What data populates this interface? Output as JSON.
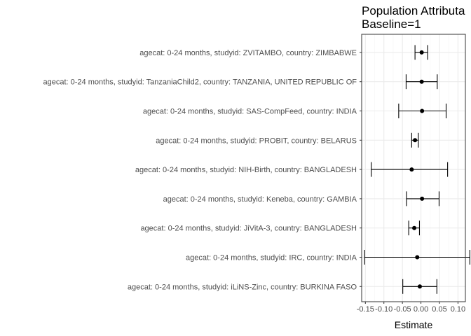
{
  "chart_data": {
    "type": "forest",
    "title_lines": [
      "Population Attributa",
      "Baseline=1"
    ],
    "xlabel": "Estimate",
    "ylabel": "",
    "xlim": [
      -0.16,
      0.12
    ],
    "xticks": [
      -0.15,
      -0.1,
      -0.05,
      0.0,
      0.05,
      0.1
    ],
    "xtick_labels": [
      "-0.15",
      "-0.10",
      "-0.05",
      "0.00",
      "0.05",
      "0.10"
    ],
    "grid": true,
    "legend": "none",
    "colors": {
      "panel_bg": "#ffffff",
      "grid_major": "#ebebeb",
      "grid_minor": "#f5f5f5",
      "border": "#333333",
      "point": "#000000",
      "text": "#4d4d4d"
    },
    "categories": [
      "agecat: 0-24 months, studyid: ZVITAMBO, country: ZIMBABWE",
      "agecat: 0-24 months, studyid: TanzaniaChild2, country: TANZANIA, UNITED REPUBLIC OF",
      "agecat: 0-24 months, studyid: SAS-CompFeed, country: INDIA",
      "agecat: 0-24 months, studyid: PROBIT, country: BELARUS",
      "agecat: 0-24 months, studyid: NIH-Birth, country: BANGLADESH",
      "agecat: 0-24 months, studyid: Keneba, country: GAMBIA",
      "agecat: 0-24 months, studyid: JiVitA-3, country: BANGLADESH",
      "agecat: 0-24 months, studyid: IRC, country: INDIA",
      "agecat: 0-24 months, studyid: iLiNS-Zinc, country: BURKINA FASO"
    ],
    "estimates": [
      0.002,
      0.002,
      0.003,
      -0.016,
      -0.025,
      0.003,
      -0.018,
      -0.01,
      -0.003
    ],
    "lower": [
      -0.016,
      -0.04,
      -0.06,
      -0.025,
      -0.134,
      -0.039,
      -0.033,
      -0.152,
      -0.049
    ],
    "upper": [
      0.018,
      0.044,
      0.068,
      -0.007,
      0.072,
      0.049,
      -0.004,
      0.132,
      0.043
    ]
  }
}
